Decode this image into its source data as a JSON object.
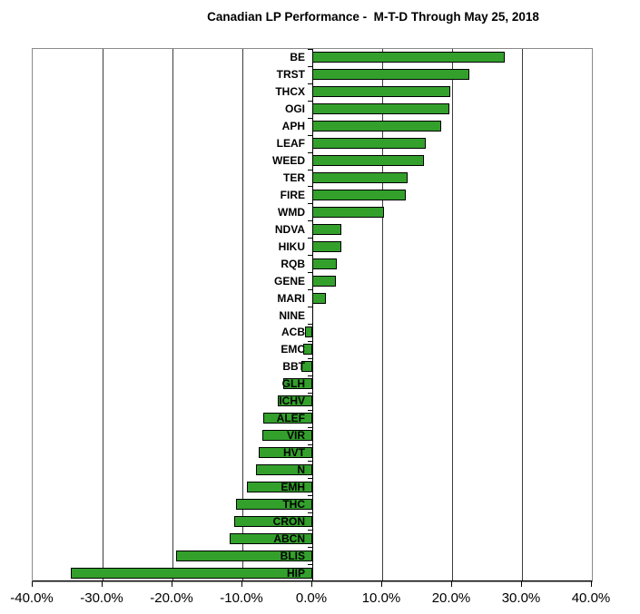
{
  "title": "Canadian LP Performance -  M-T-D Through May 25, 2018",
  "chart_data": {
    "type": "bar",
    "orientation": "horizontal",
    "title": "Canadian LP Performance -  M-T-D Through May 25, 2018",
    "categories": [
      "BE",
      "TRST",
      "THCX",
      "OGI",
      "APH",
      "LEAF",
      "WEED",
      "TER",
      "FIRE",
      "WMD",
      "NDVA",
      "HIKU",
      "RQB",
      "GENE",
      "MARI",
      "NINE",
      "ACB",
      "EMC",
      "BBT",
      "GLH",
      "ICHV",
      "ALEF",
      "VIR",
      "HVT",
      "N",
      "EMH",
      "THC",
      "CRON",
      "ABCN",
      "BLIS",
      "HIP"
    ],
    "values": [
      27.5,
      22.5,
      19.8,
      19.6,
      18.5,
      16.2,
      16.0,
      13.6,
      13.4,
      10.3,
      4.2,
      4.1,
      3.5,
      3.4,
      1.9,
      0.0,
      -1.0,
      -1.3,
      -1.6,
      -4.1,
      -4.9,
      -7.0,
      -7.1,
      -7.6,
      -8.1,
      -9.4,
      -10.9,
      -11.2,
      -11.8,
      -19.5,
      -34.5
    ],
    "value_unit": "percent",
    "xlim": [
      -40,
      40
    ],
    "x_tick_values": [
      -40,
      -30,
      -20,
      -10,
      0,
      10,
      20,
      30,
      40
    ],
    "x_tick_labels": [
      "-40.0%",
      "-30.0%",
      "-20.0%",
      "-10.0%",
      "0.0%",
      "10.0%",
      "20.0%",
      "30.0%",
      "40.0%"
    ],
    "grid": "vertical",
    "legend": "none",
    "colors": {
      "bar_fill": "#33a02c",
      "bar_border": "#000000",
      "gridline": "#3c3c3c",
      "plot_border": "#8a8a8a",
      "axis_line": "#000000",
      "text": "#000000",
      "background": "#ffffff"
    }
  }
}
